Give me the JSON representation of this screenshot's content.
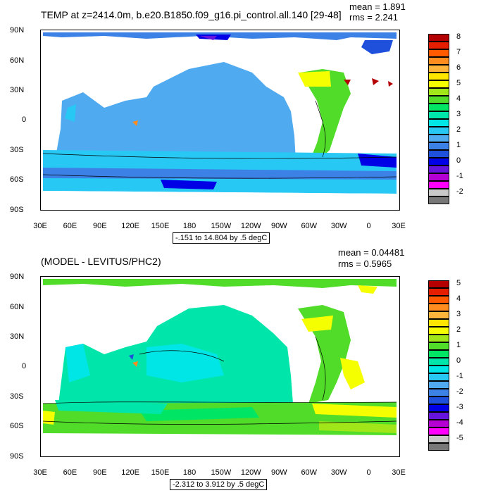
{
  "panel1": {
    "title": "TEMP at z=2414.0m, b.e20.B1850.f09_g16.pi_control.all.140 [29-48]",
    "mean": "mean = 1.891",
    "rms": "rms = 2.241",
    "range": "-.151 to 14.804 by .5 degC",
    "colorbar": {
      "labels": [
        "8",
        "7",
        "6",
        "5",
        "4",
        "3",
        "2",
        "1",
        "0",
        "-1",
        "-2"
      ],
      "colors": [
        "#b40000",
        "#e61e00",
        "#ff5a00",
        "#ff8c1e",
        "#ffb43c",
        "#ffe600",
        "#f5ff00",
        "#a0e619",
        "#50dc28",
        "#00e664",
        "#00e6aa",
        "#00e6e6",
        "#28c8f5",
        "#50aaf0",
        "#3c82e6",
        "#1e50dc",
        "#0000e6",
        "#6414dc",
        "#b400d2",
        "#ff00ff",
        "#c8c8c8",
        "#787878"
      ]
    }
  },
  "panel2": {
    "title": "(MODEL - LEVITUS/PHC2)",
    "mean": "mean = 0.04481",
    "rms": "rms = 0.5965",
    "range": "-2.312 to 3.912 by .5 degC",
    "colorbar": {
      "labels": [
        "5",
        "4",
        "3",
        "2",
        "1",
        "0",
        "-1",
        "-2",
        "-3",
        "-4",
        "-5"
      ],
      "colors": [
        "#b40000",
        "#e61e00",
        "#ff5a00",
        "#ff8c1e",
        "#ffb43c",
        "#ffe600",
        "#f5ff00",
        "#a0e619",
        "#50dc28",
        "#00e664",
        "#00e6aa",
        "#00e6e6",
        "#28c8f5",
        "#50aaf0",
        "#3c82e6",
        "#1e50dc",
        "#0000e6",
        "#6414dc",
        "#b400d2",
        "#ff00ff",
        "#c8c8c8",
        "#787878"
      ]
    }
  },
  "axes": {
    "lat_labels": [
      "90N",
      "60N",
      "30N",
      "0",
      "30S",
      "60S",
      "90S"
    ],
    "lon_labels": [
      "30E",
      "60E",
      "90E",
      "120E",
      "150E",
      "180",
      "150W",
      "120W",
      "90W",
      "60W",
      "30W",
      "0",
      "30E"
    ]
  }
}
